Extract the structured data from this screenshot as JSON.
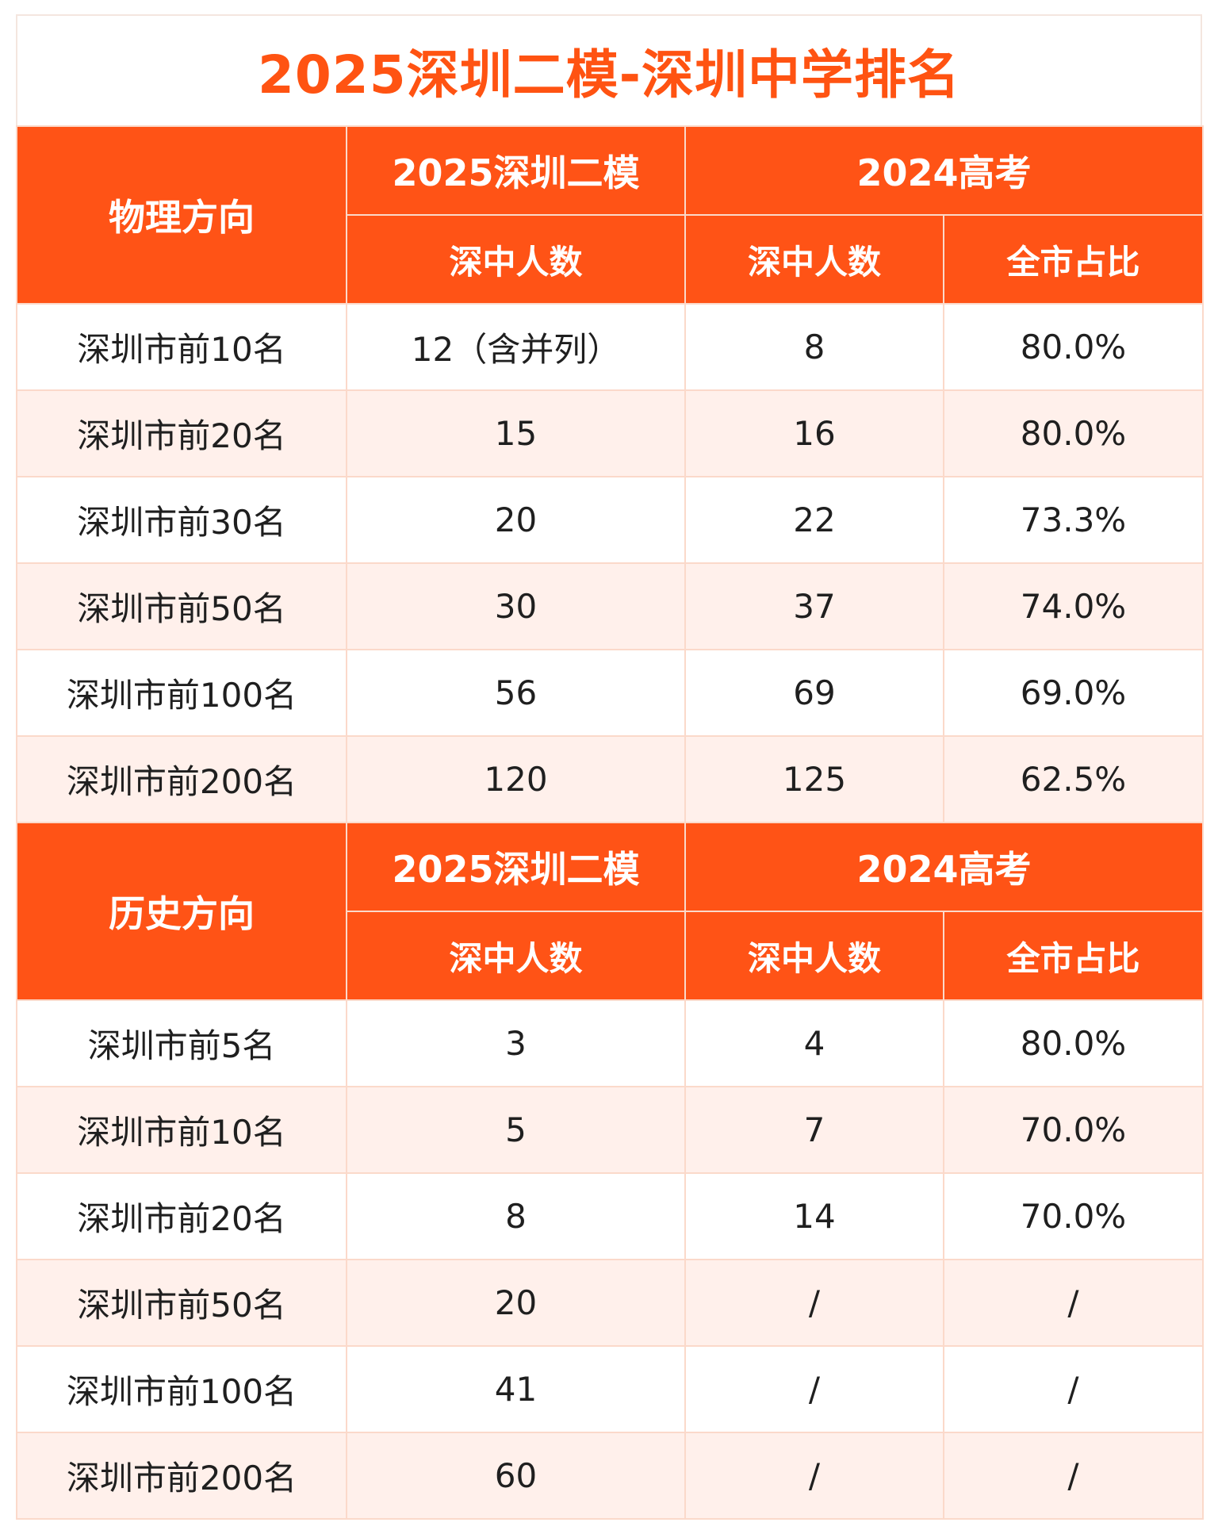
{
  "title": "2025深圳二模-深圳中学排名",
  "colors": {
    "accent": "#ff5316",
    "row_alt": "#fff0eb",
    "border": "#fbd9ca"
  },
  "headers": {
    "exam_2025": "2025深圳二模",
    "gaokao_2024": "2024高考",
    "count": "深中人数",
    "city_ratio": "全市占比"
  },
  "physics": {
    "label": "物理方向",
    "rows": [
      {
        "rank": "深圳市前10名",
        "count_2025": "12（含并列）",
        "count_2024": "8",
        "ratio_2024": "80.0%"
      },
      {
        "rank": "深圳市前20名",
        "count_2025": "15",
        "count_2024": "16",
        "ratio_2024": "80.0%"
      },
      {
        "rank": "深圳市前30名",
        "count_2025": "20",
        "count_2024": "22",
        "ratio_2024": "73.3%"
      },
      {
        "rank": "深圳市前50名",
        "count_2025": "30",
        "count_2024": "37",
        "ratio_2024": "74.0%"
      },
      {
        "rank": "深圳市前100名",
        "count_2025": "56",
        "count_2024": "69",
        "ratio_2024": "69.0%"
      },
      {
        "rank": "深圳市前200名",
        "count_2025": "120",
        "count_2024": "125",
        "ratio_2024": "62.5%"
      }
    ]
  },
  "history": {
    "label": "历史方向",
    "rows": [
      {
        "rank": "深圳市前5名",
        "count_2025": "3",
        "count_2024": "4",
        "ratio_2024": "80.0%"
      },
      {
        "rank": "深圳市前10名",
        "count_2025": "5",
        "count_2024": "7",
        "ratio_2024": "70.0%"
      },
      {
        "rank": "深圳市前20名",
        "count_2025": "8",
        "count_2024": "14",
        "ratio_2024": "70.0%"
      },
      {
        "rank": "深圳市前50名",
        "count_2025": "20",
        "count_2024": "/",
        "ratio_2024": "/"
      },
      {
        "rank": "深圳市前100名",
        "count_2025": "41",
        "count_2024": "/",
        "ratio_2024": "/"
      },
      {
        "rank": "深圳市前200名",
        "count_2025": "60",
        "count_2024": "/",
        "ratio_2024": "/"
      }
    ]
  }
}
